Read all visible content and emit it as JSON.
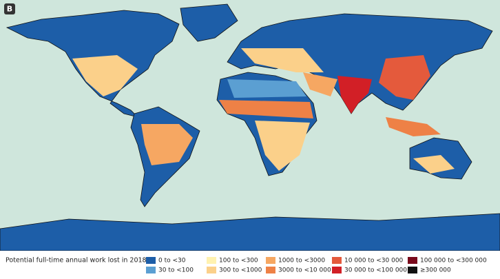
{
  "panel_label": "B",
  "legend": {
    "title": "Potential full-time annual work lost in 2018",
    "items": [
      {
        "label": "0 to <30",
        "color": "#1d5ea8"
      },
      {
        "label": "30 to <100",
        "color": "#5b9fd2"
      },
      {
        "label": "100 to <300",
        "color": "#fff2b0"
      },
      {
        "label": "300 to <1000",
        "color": "#fbd08a"
      },
      {
        "label": "1000 to <3000",
        "color": "#f6a762"
      },
      {
        "label": "3000 to <10 000",
        "color": "#ee8146"
      },
      {
        "label": "10 000 to <30 000",
        "color": "#e45a3c"
      },
      {
        "label": "30 000 to <100 000",
        "color": "#d21f26"
      },
      {
        "label": "100 000 to <300 000",
        "color": "#7a0a1c"
      },
      {
        "label": "≥300 000",
        "color": "#111111"
      }
    ]
  }
}
